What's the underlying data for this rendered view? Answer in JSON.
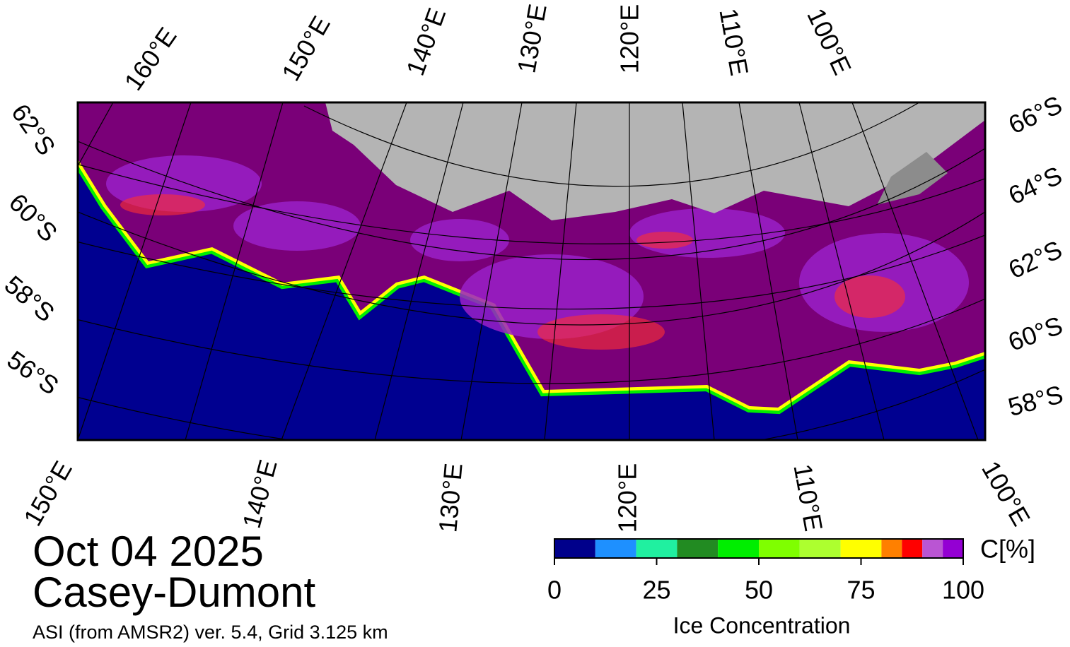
{
  "graticule_labels": {
    "top": [
      "160°E",
      "150°E",
      "140°E",
      "130°E",
      "120°E",
      "110°E",
      "100°E"
    ],
    "bottom": [
      "150°E",
      "140°E",
      "130°E",
      "120°E",
      "110°E",
      "100°E"
    ],
    "left": [
      "62°S",
      "60°S",
      "58°S",
      "56°S"
    ],
    "right": [
      "66°S",
      "64°S",
      "62°S",
      "60°S",
      "58°S"
    ]
  },
  "date": "Oct 04 2025",
  "region": "Casey-Dumont",
  "subtitle": "ASI (from AMSR2) ver. 5.4,  Grid 3.125 km",
  "colorbar": {
    "label": "Ice Concentration",
    "unit": "C[%]",
    "lim": [
      0,
      100
    ],
    "bins": [
      0,
      10,
      20,
      30,
      40,
      50,
      60,
      70,
      80,
      85,
      90,
      95,
      100
    ],
    "colors": [
      "#00008b",
      "#1e90ff",
      "#20f0a0",
      "#228b22",
      "#00ee00",
      "#7fff00",
      "#adff2f",
      "#ffff00",
      "#ff8000",
      "#ff0000",
      "#ba55d3",
      "#9400d3"
    ],
    "ticks": [
      0,
      25,
      50,
      75,
      100
    ]
  }
}
